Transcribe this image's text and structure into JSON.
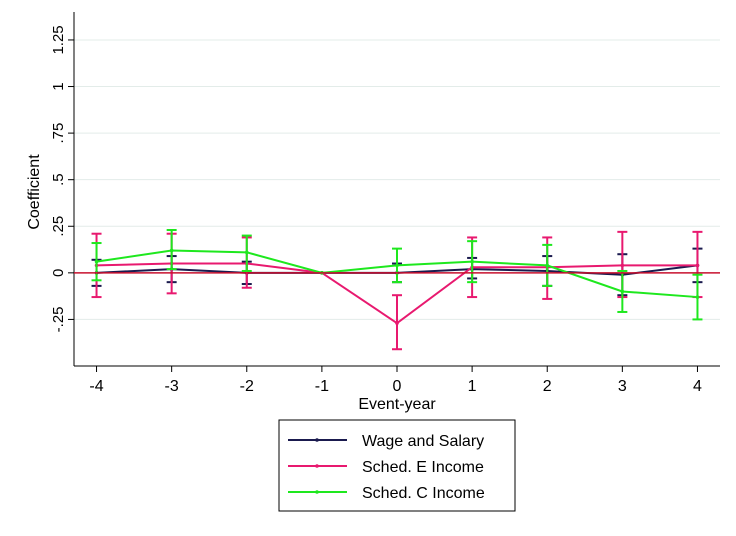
{
  "chart_data": {
    "type": "line",
    "xlabel": "Event-year",
    "ylabel": "Coefficient",
    "x": [
      -4,
      -3,
      -2,
      -1,
      0,
      1,
      2,
      3,
      4
    ],
    "xticks": [
      "-4",
      "-3",
      "-2",
      "-1",
      "0",
      "1",
      "2",
      "3",
      "4"
    ],
    "xlim": [
      -4.3,
      4.3
    ],
    "yticks": [
      {
        "value": -0.25,
        "label": "-.25"
      },
      {
        "value": 0,
        "label": "0"
      },
      {
        "value": 0.25,
        "label": ".25"
      },
      {
        "value": 0.5,
        "label": ".5"
      },
      {
        "value": 0.75,
        "label": ".75"
      },
      {
        "value": 1,
        "label": "1"
      },
      {
        "value": 1.25,
        "label": "1.25"
      }
    ],
    "ylim": [
      -0.5,
      1.4
    ],
    "grid": true,
    "reference_line": 0,
    "legend_position": "bottom",
    "series": [
      {
        "name": "Wage and Salary",
        "color": "#1a1a4e",
        "values": [
          0.0,
          0.02,
          0.0,
          0.0,
          0.0,
          0.02,
          0.01,
          -0.01,
          0.04
        ],
        "ci_low": [
          -0.07,
          -0.05,
          -0.06,
          0.0,
          -0.05,
          -0.03,
          -0.07,
          -0.12,
          -0.05
        ],
        "ci_high": [
          0.07,
          0.09,
          0.06,
          0.0,
          0.05,
          0.08,
          0.09,
          0.1,
          0.13
        ]
      },
      {
        "name": "Sched. E Income",
        "color": "#e8196f",
        "values": [
          0.04,
          0.05,
          0.05,
          0.0,
          -0.27,
          0.03,
          0.03,
          0.04,
          0.04
        ],
        "ci_low": [
          -0.13,
          -0.11,
          -0.08,
          0.0,
          -0.41,
          -0.13,
          -0.14,
          -0.13,
          -0.13
        ],
        "ci_high": [
          0.21,
          0.21,
          0.19,
          0.0,
          -0.12,
          0.19,
          0.19,
          0.22,
          0.22
        ]
      },
      {
        "name": "Sched. C Income",
        "color": "#1ee81e",
        "values": [
          0.06,
          0.12,
          0.11,
          0.0,
          0.04,
          0.06,
          0.04,
          -0.1,
          -0.13
        ],
        "ci_low": [
          -0.04,
          0.02,
          0.01,
          0.0,
          -0.05,
          -0.05,
          -0.07,
          -0.21,
          -0.25
        ],
        "ci_high": [
          0.16,
          0.23,
          0.2,
          0.0,
          0.13,
          0.17,
          0.15,
          0.01,
          -0.01
        ]
      }
    ]
  }
}
